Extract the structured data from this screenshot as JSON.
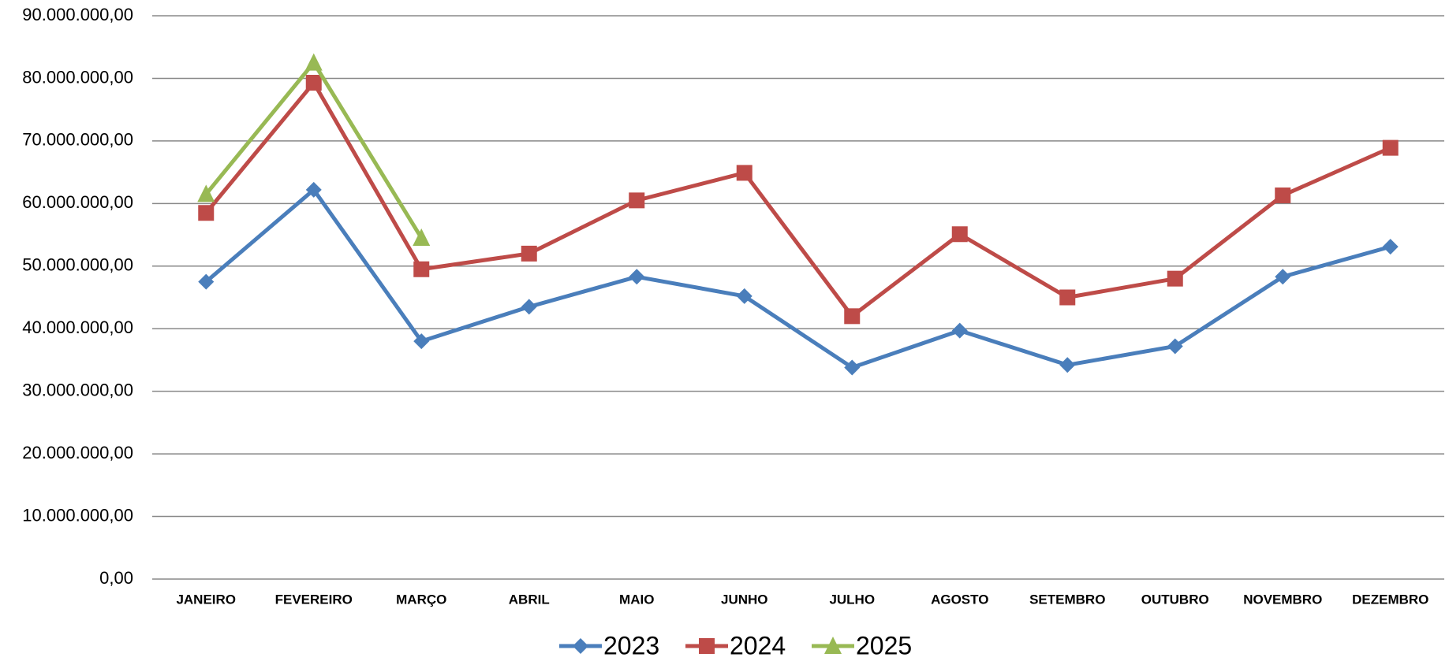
{
  "chart_data": {
    "type": "line",
    "categories": [
      "JANEIRO",
      "FEVEREIRO",
      "MARÇO",
      "ABRIL",
      "MAIO",
      "JUNHO",
      "JULHO",
      "AGOSTO",
      "SETEMBRO",
      "OUTUBRO",
      "NOVEMBRO",
      "DEZEMBRO"
    ],
    "series": [
      {
        "name": "2023",
        "color": "#4a7ebb",
        "marker": "diamond",
        "values": [
          47500000,
          62200000,
          38000000,
          43500000,
          48300000,
          45200000,
          33800000,
          39700000,
          34200000,
          37200000,
          48300000,
          53100000
        ]
      },
      {
        "name": "2024",
        "color": "#be4b48",
        "marker": "square",
        "values": [
          58500000,
          79300000,
          49500000,
          52000000,
          60500000,
          64900000,
          42000000,
          55100000,
          45000000,
          48000000,
          61300000,
          68900000
        ]
      },
      {
        "name": "2025",
        "color": "#98b954",
        "marker": "triangle",
        "values": [
          61500000,
          82500000,
          54500000,
          null,
          null,
          null,
          null,
          null,
          null,
          null,
          null,
          null
        ]
      }
    ],
    "ylim": [
      0,
      90000000
    ],
    "yticks": [
      {
        "value": 0,
        "label": "0,00"
      },
      {
        "value": 10000000,
        "label": "10.000.000,00"
      },
      {
        "value": 20000000,
        "label": "20.000.000,00"
      },
      {
        "value": 30000000,
        "label": "30.000.000,00"
      },
      {
        "value": 40000000,
        "label": "40.000.000,00"
      },
      {
        "value": 50000000,
        "label": "50.000.000,00"
      },
      {
        "value": 60000000,
        "label": "60.000.000,00"
      },
      {
        "value": 70000000,
        "label": "70.000.000,00"
      },
      {
        "value": 80000000,
        "label": "80.000.000,00"
      },
      {
        "value": 90000000,
        "label": "90.000.000,00"
      }
    ],
    "grid": true,
    "legend": "bottom"
  }
}
